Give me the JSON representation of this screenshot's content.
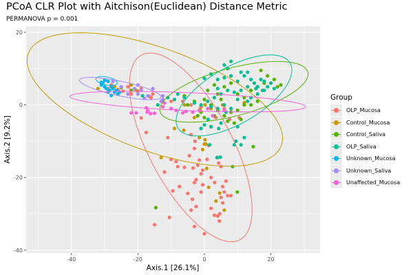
{
  "chart_data": {
    "type": "scatter",
    "title": "PCoA CLR Plot with Aitchison(Euclidean) Distance Metric",
    "subtitle": "PERMANOVA p =  0.001",
    "xlabel": "Axis.1   [26.1%]",
    "ylabel": "Axis.2   [9.2%]",
    "xlim": [
      -53.6,
      34.8
    ],
    "ylim": [
      -40.8,
      21.7
    ],
    "xticks": [
      -40,
      -20,
      0,
      20
    ],
    "yticks": [
      -40,
      -20,
      0,
      20
    ],
    "grid": true,
    "legend": {
      "title": "Group",
      "position": "right"
    },
    "series": [
      {
        "name": "OLP_Mucosa",
        "color": "#F8766D",
        "ellipse": {
          "cx": -4.1,
          "cy": -11.7,
          "a": 31.5,
          "b": 12.5,
          "angle": 62
        },
        "points": [
          [
            -19,
            -3.6
          ],
          [
            -17.5,
            -7.6
          ],
          [
            -11,
            -9
          ],
          [
            -2.8,
            -10
          ],
          [
            -3,
            -12
          ],
          [
            -10,
            -15
          ],
          [
            -12,
            -18.5
          ],
          [
            -8,
            -17
          ],
          [
            -6,
            -17.2
          ],
          [
            -3.4,
            -17.4
          ],
          [
            -0.5,
            -18
          ],
          [
            0.8,
            -15
          ],
          [
            -2,
            -16.6
          ],
          [
            -1,
            -19
          ],
          [
            -2.5,
            -20.6
          ],
          [
            -3,
            -21.4
          ],
          [
            -0.5,
            -22
          ],
          [
            -1,
            -24
          ],
          [
            -9.5,
            -23.7
          ],
          [
            -7.5,
            -22.5
          ],
          [
            -5,
            -24.4
          ],
          [
            -3.6,
            -26
          ],
          [
            -4,
            -29
          ],
          [
            -2.5,
            -28
          ],
          [
            3.1,
            -21.4
          ],
          [
            2,
            -20
          ],
          [
            4,
            -14.5
          ],
          [
            4.3,
            -16
          ],
          [
            5,
            -17
          ],
          [
            5.5,
            -22.5
          ],
          [
            6,
            -24
          ],
          [
            7,
            -25
          ],
          [
            5,
            -25.5
          ],
          [
            5.5,
            -27
          ],
          [
            8,
            -25
          ],
          [
            2,
            -28.5
          ],
          [
            3,
            -30.4
          ],
          [
            4,
            -30.6
          ],
          [
            4.6,
            -30
          ],
          [
            4.5,
            -32
          ],
          [
            0,
            -35.5
          ],
          [
            -15,
            -33
          ],
          [
            -10.5,
            -31
          ],
          [
            6.5,
            -21
          ],
          [
            -3,
            -33.5
          ],
          [
            2,
            -6
          ],
          [
            -4,
            -8.2
          ],
          [
            3.5,
            -3.5
          ],
          [
            7.6,
            -4
          ],
          [
            10.5,
            -3.5
          ],
          [
            -29,
            4.5
          ],
          [
            -28,
            5.5
          ],
          [
            -27,
            3.5
          ],
          [
            -26,
            4.2
          ],
          [
            -24.5,
            3.8
          ],
          [
            -23,
            5
          ],
          [
            -22,
            3
          ],
          [
            -20,
            3.8
          ],
          [
            -19,
            4.6
          ],
          [
            -16.5,
            2.3
          ],
          [
            -15.5,
            3
          ],
          [
            -16,
            2
          ],
          [
            -10,
            1
          ],
          [
            -6.5,
            1
          ],
          [
            -4,
            0
          ],
          [
            -1,
            -0.5
          ],
          [
            6,
            -1
          ],
          [
            8,
            -2
          ],
          [
            1.3,
            -11.2
          ],
          [
            -4.5,
            -14
          ],
          [
            -1.5,
            -15.2
          ],
          [
            -8.5,
            -15.6
          ]
        ]
      },
      {
        "name": "Control_Mucosa",
        "color": "#C49A00",
        "ellipse": {
          "cx": -14.9,
          "cy": 1.5,
          "a": 40.5,
          "b": 15.5,
          "angle": 20
        },
        "points": [
          [
            -1.5,
            -9
          ],
          [
            0.2,
            -9.6
          ],
          [
            0,
            -10.8
          ],
          [
            0.4,
            -10.8
          ],
          [
            -0.5,
            -12.3
          ],
          [
            -13,
            -14.5
          ],
          [
            0.7,
            -17.5
          ],
          [
            1.3,
            -22.7
          ],
          [
            4.6,
            -24.3
          ],
          [
            6,
            -29
          ],
          [
            3.5,
            -26.5
          ],
          [
            -32,
            4.5
          ],
          [
            -27,
            5
          ],
          [
            -22,
            5.5
          ],
          [
            -20.5,
            4
          ],
          [
            -6,
            0
          ],
          [
            -3,
            -3.5
          ],
          [
            -1.3,
            -1.2
          ],
          [
            0.2,
            0
          ],
          [
            2,
            -1
          ],
          [
            5.5,
            0
          ],
          [
            12,
            0.6
          ],
          [
            -9,
            -6.5
          ],
          [
            -6.2,
            -7
          ]
        ]
      },
      {
        "name": "Control_Saliva",
        "color": "#53B400",
        "ellipse": {
          "cx": 8.9,
          "cy": 3.6,
          "a": 23,
          "b": 7.2,
          "angle": -15
        },
        "points": [
          [
            -14.6,
            -28.3
          ],
          [
            9.9,
            -24
          ],
          [
            8.5,
            -17
          ],
          [
            14.7,
            -11.5
          ],
          [
            -5,
            0
          ],
          [
            -3,
            1
          ],
          [
            0,
            1.5
          ],
          [
            2,
            0
          ],
          [
            4,
            3
          ],
          [
            6,
            5
          ],
          [
            8,
            6
          ],
          [
            10,
            3
          ],
          [
            12,
            2
          ],
          [
            14,
            4
          ],
          [
            16,
            5
          ],
          [
            18,
            6
          ],
          [
            20,
            6
          ],
          [
            22,
            5
          ],
          [
            19,
            8
          ],
          [
            17,
            9.5
          ],
          [
            21,
            7
          ],
          [
            23,
            5.5
          ],
          [
            12,
            0
          ],
          [
            10,
            -1.5
          ],
          [
            8,
            -2
          ],
          [
            4,
            -1.5
          ],
          [
            3,
            -3
          ],
          [
            -1,
            -2
          ],
          [
            -2,
            -3
          ],
          [
            0,
            -3.5
          ],
          [
            6,
            -3
          ],
          [
            7,
            -4.5
          ],
          [
            9,
            -5
          ],
          [
            11,
            -4
          ],
          [
            14,
            0
          ],
          [
            16,
            1
          ],
          [
            5,
            1.5
          ],
          [
            -6,
            2.5
          ],
          [
            1,
            4
          ],
          [
            3,
            5.5
          ],
          [
            -25,
            4.8
          ],
          [
            -22,
            4
          ]
        ]
      },
      {
        "name": "OLP_Saliva",
        "color": "#00C094",
        "ellipse": {
          "cx": 8.9,
          "cy": 2.6,
          "a": 19.5,
          "b": 8.5,
          "angle": -30
        },
        "points": [
          [
            -18.6,
            2.5
          ],
          [
            1.1,
            -4
          ],
          [
            6.5,
            -2
          ],
          [
            13,
            1
          ],
          [
            10,
            -6
          ],
          [
            12,
            -9
          ],
          [
            9.5,
            -10
          ],
          [
            9,
            -11
          ],
          [
            11,
            -11
          ],
          [
            1.6,
            -11
          ],
          [
            3.8,
            -14.5
          ],
          [
            4.8,
            -14.4
          ],
          [
            4.3,
            -6.5
          ],
          [
            5,
            -5
          ],
          [
            0,
            7.3
          ],
          [
            2,
            8.5
          ],
          [
            4,
            7
          ],
          [
            6,
            7.5
          ],
          [
            8,
            8
          ],
          [
            10,
            6.5
          ],
          [
            12,
            8
          ],
          [
            14,
            7
          ],
          [
            15,
            6
          ],
          [
            16,
            5
          ],
          [
            17,
            7
          ],
          [
            18,
            6.5
          ],
          [
            19,
            5
          ],
          [
            17.5,
            4
          ],
          [
            15.5,
            4.5
          ],
          [
            13,
            5
          ],
          [
            11,
            4
          ],
          [
            9,
            3.5
          ],
          [
            7,
            4
          ],
          [
            5,
            3
          ],
          [
            3,
            2
          ],
          [
            1,
            1
          ],
          [
            -1,
            0
          ],
          [
            -3,
            0.5
          ],
          [
            -6,
            2
          ],
          [
            -8,
            3
          ],
          [
            -9,
            1.5
          ],
          [
            2,
            -0.5
          ],
          [
            4,
            -1
          ],
          [
            6,
            0
          ],
          [
            8,
            -1
          ],
          [
            10,
            1.5
          ],
          [
            14,
            2
          ],
          [
            16,
            3
          ],
          [
            18,
            4
          ],
          [
            20,
            6
          ],
          [
            21,
            4.5
          ],
          [
            13,
            9
          ],
          [
            11,
            9
          ],
          [
            7,
            10
          ],
          [
            8,
            12
          ],
          [
            -14,
            0
          ],
          [
            -12.5,
            1
          ],
          [
            -11,
            2
          ],
          [
            0,
            -5.5
          ],
          [
            2,
            -6
          ],
          [
            -1,
            -6.5
          ],
          [
            6,
            11
          ],
          [
            4,
            4.5
          ]
        ]
      },
      {
        "name": "Unknown_Mucosa",
        "color": "#00B6EB",
        "ellipse": {
          "cx": -29.4,
          "cy": 6.6,
          "a": 3.3,
          "b": 1.2,
          "angle": 12
        },
        "points": [
          [
            -31,
            5.5
          ],
          [
            -30.5,
            6
          ],
          [
            -30,
            5
          ],
          [
            -29.5,
            4.5
          ],
          [
            -29,
            6.5
          ],
          [
            -28.5,
            4
          ],
          [
            -28,
            5
          ],
          [
            -27.5,
            4.5
          ],
          [
            -27,
            3.5
          ],
          [
            -26.5,
            4
          ],
          [
            -26,
            3
          ],
          [
            -25.5,
            3.5
          ],
          [
            -30,
            6.8
          ],
          [
            -31,
            6.2
          ],
          [
            -29,
            3.5
          ],
          [
            -28,
            2.6
          ]
        ]
      },
      {
        "name": "Unknown_Saliva",
        "color": "#A58AFF",
        "ellipse": {
          "cx": -25.3,
          "cy": 4.5,
          "a": 12.5,
          "b": 2.2,
          "angle": 12
        },
        "points": [
          [
            -27.5,
            6.5
          ],
          [
            -25,
            5
          ],
          [
            -23,
            3
          ],
          [
            -21,
            4.5
          ],
          [
            -20,
            5.5
          ],
          [
            -20,
            3
          ],
          [
            -19,
            4
          ],
          [
            -18,
            1.8
          ],
          [
            -17,
            2.5
          ],
          [
            -15.5,
            4.5
          ],
          [
            -13,
            1
          ],
          [
            -12.5,
            2.5
          ],
          [
            -12.5,
            1.5
          ]
        ]
      },
      {
        "name": "Unaffected_Mucosa",
        "color": "#FB61D7",
        "ellipse": {
          "cx": -5,
          "cy": 0.9,
          "a": 35.5,
          "b": 2.7,
          "angle": 2.5
        },
        "points": [
          [
            -17,
            -1.6
          ],
          [
            -15,
            -2.3
          ],
          [
            -12.5,
            -0.5
          ],
          [
            -10,
            -1
          ],
          [
            -17.2,
            -2
          ],
          [
            -16.2,
            -2.4
          ],
          [
            -8.5,
            -1.5
          ],
          [
            -5.5,
            -1.8
          ],
          [
            -3.5,
            -2
          ],
          [
            -1.5,
            -1.5
          ],
          [
            1,
            -1
          ],
          [
            2.5,
            -3
          ],
          [
            6,
            -1.5
          ],
          [
            -6.5,
            -2.2
          ],
          [
            -17.5,
            -0.8
          ],
          [
            -20.5,
            -2.2
          ],
          [
            -22,
            -2.2
          ],
          [
            -12,
            0.5
          ]
        ]
      }
    ]
  }
}
